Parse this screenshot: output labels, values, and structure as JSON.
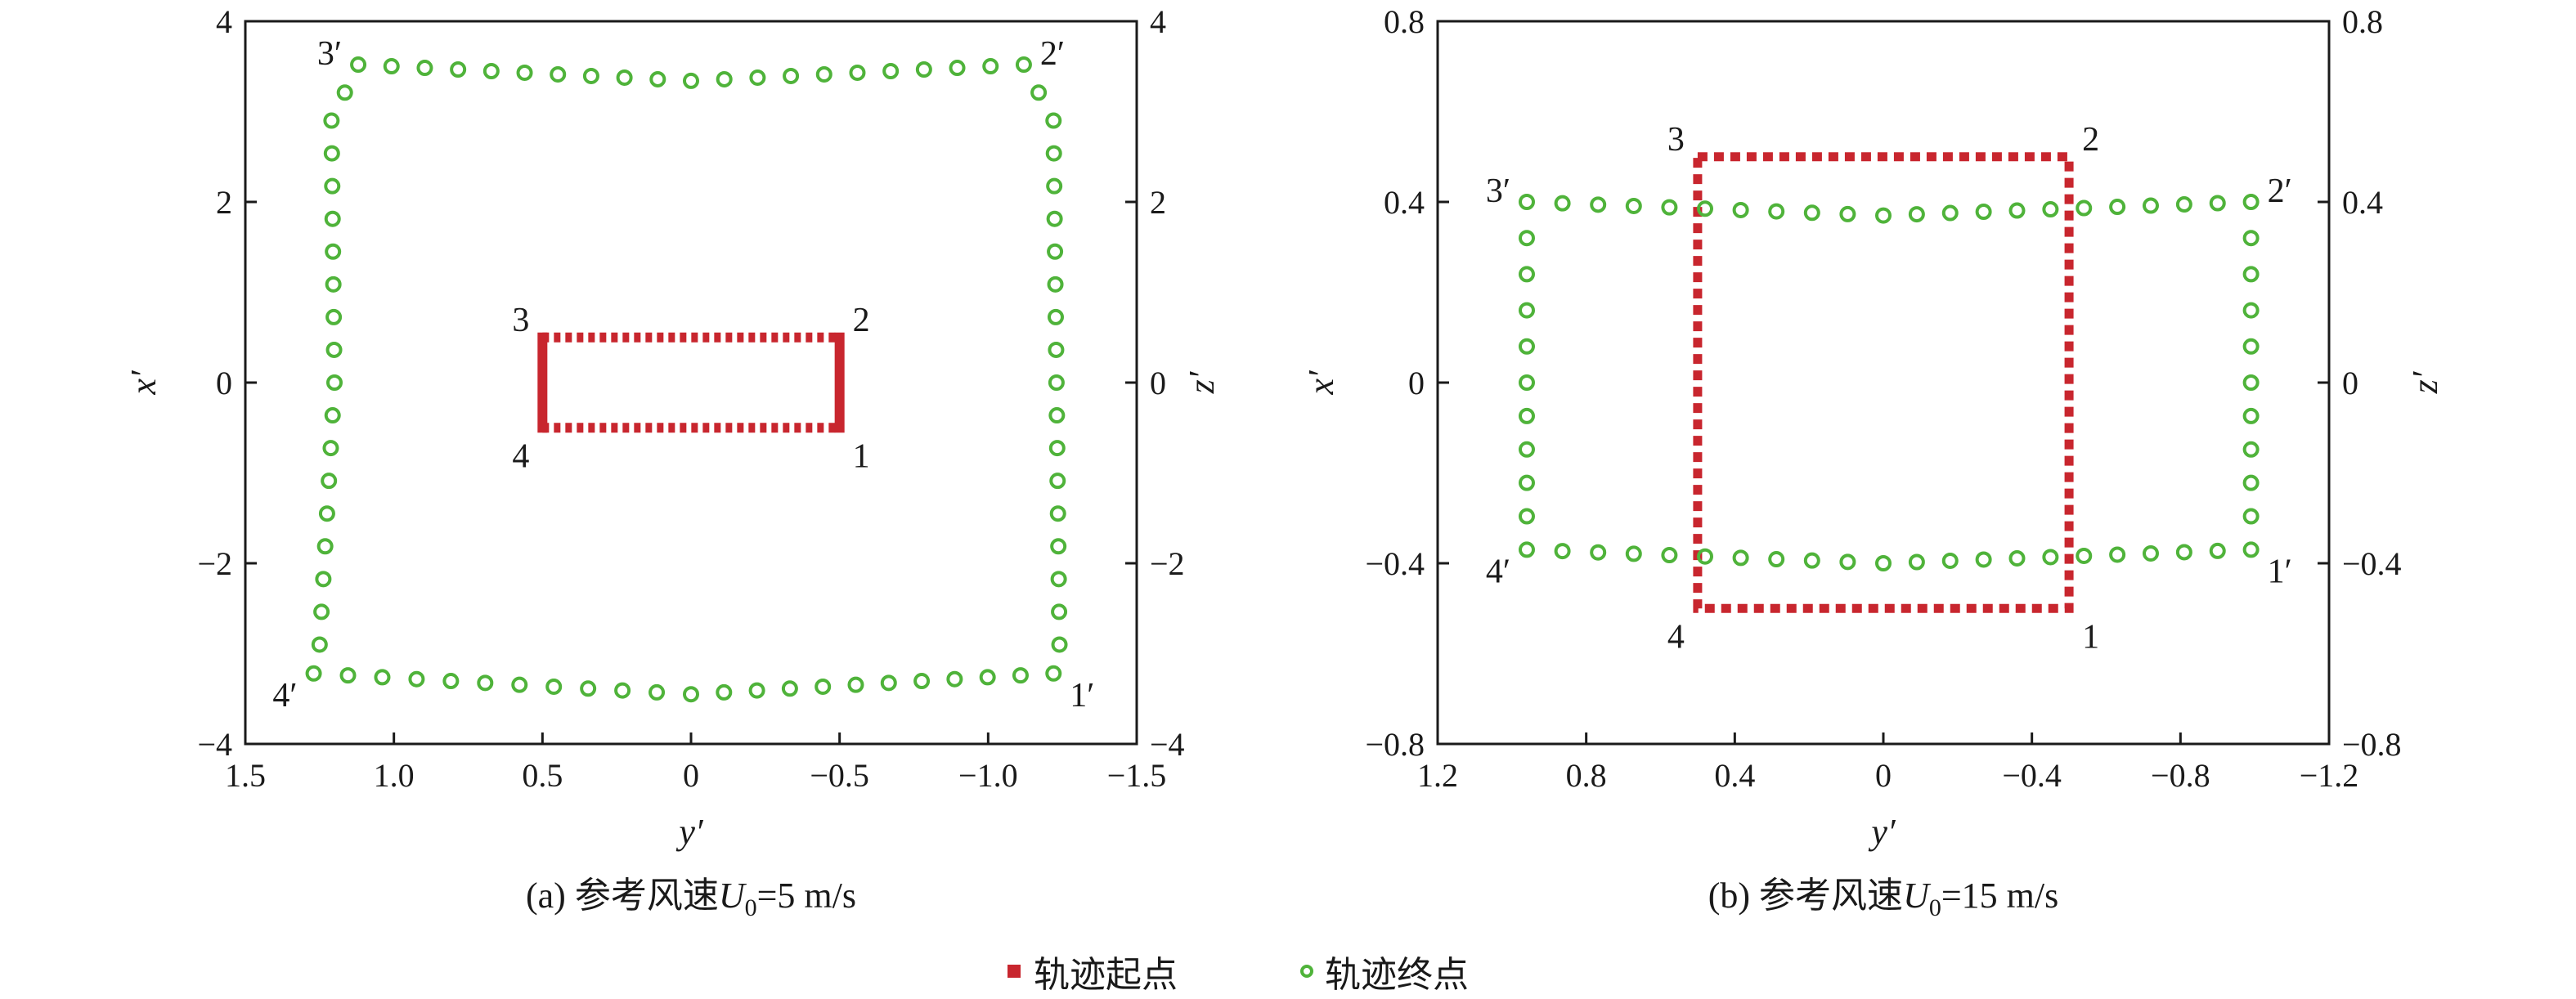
{
  "colors": {
    "start": "#c8262e",
    "end": "#4fb33a",
    "axis": "#1a1a1a"
  },
  "legend": {
    "start_label": "轨迹起点",
    "end_label": "轨迹终点"
  },
  "chart_data": [
    {
      "type": "scatter",
      "caption_prefix": "(a) 参考风速",
      "caption_var": "U",
      "caption_sub": "0",
      "caption_suffix": "=5 m/s",
      "xlabel": "y′",
      "ylabel": "x′",
      "ylabel_right": "z′",
      "xlim": [
        1.5,
        -1.5
      ],
      "ylim": [
        -4,
        4
      ],
      "xticks": [
        1.5,
        1.0,
        0.5,
        0,
        -0.5,
        -1.0,
        -1.5
      ],
      "xtick_labels": [
        "1.5",
        "1.0",
        "0.5",
        "0",
        "−0.5",
        "−1.0",
        "−1.5"
      ],
      "yticks": [
        -4,
        -2,
        0,
        2,
        4
      ],
      "ytick_labels": [
        "−4",
        "−2",
        "0",
        "2",
        "4"
      ],
      "start_rect": {
        "y": [
          0.5,
          -0.5
        ],
        "x": [
          -0.5,
          0.5
        ],
        "style": "thin-dotted, solid vertical sides"
      },
      "start_labels": [
        {
          "text": "1",
          "y": -0.5,
          "x": -0.5,
          "pos": "bottom-right"
        },
        {
          "text": "2",
          "y": -0.5,
          "x": 0.5,
          "pos": "top-right"
        },
        {
          "text": "3",
          "y": 0.5,
          "x": 0.5,
          "pos": "top-left"
        },
        {
          "text": "4",
          "y": 0.5,
          "x": -0.5,
          "pos": "bottom-left"
        }
      ],
      "end_polygon": [
        {
          "y": -1.22,
          "x": -3.22
        },
        {
          "y": -1.24,
          "x": -2.9
        },
        {
          "y": -1.23,
          "x": 0.0
        },
        {
          "y": -1.22,
          "x": 2.9
        },
        {
          "y": -1.12,
          "x": 3.52
        },
        {
          "y": 0.0,
          "x": 3.34
        },
        {
          "y": 1.12,
          "x": 3.52
        },
        {
          "y": 1.21,
          "x": 2.9
        },
        {
          "y": 1.2,
          "x": 0.0
        },
        {
          "y": 1.25,
          "x": -2.9
        },
        {
          "y": 1.27,
          "x": -3.22
        },
        {
          "y": 0.0,
          "x": -3.45
        },
        {
          "y": -1.22,
          "x": -3.22
        }
      ],
      "end_labels": [
        {
          "text": "1′",
          "y": -1.22,
          "x": -3.22,
          "pos": "bottom-right"
        },
        {
          "text": "2′",
          "y": -1.12,
          "x": 3.52,
          "pos": "top-right"
        },
        {
          "text": "3′",
          "y": 1.12,
          "x": 3.52,
          "pos": "top-left"
        },
        {
          "text": "4′",
          "y": 1.27,
          "x": -3.22,
          "pos": "bottom-left"
        }
      ]
    },
    {
      "type": "scatter",
      "caption_prefix": "(b) 参考风速",
      "caption_var": "U",
      "caption_sub": "0",
      "caption_suffix": "=15 m/s",
      "xlabel": "y′",
      "ylabel": "x′",
      "ylabel_right": "z′",
      "xlim": [
        1.2,
        -1.2
      ],
      "ylim": [
        -0.8,
        0.8
      ],
      "xticks": [
        1.2,
        0.8,
        0.4,
        0,
        -0.4,
        -0.8,
        -1.2
      ],
      "xtick_labels": [
        "1.2",
        "0.8",
        "0.4",
        "0",
        "−0.4",
        "−0.8",
        "−1.2"
      ],
      "yticks": [
        -0.8,
        -0.4,
        0,
        0.4,
        0.8
      ],
      "ytick_labels": [
        "−0.8",
        "−0.4",
        "0",
        "0.4",
        "0.8"
      ],
      "start_rect": {
        "y": [
          0.5,
          -0.5
        ],
        "x": [
          -0.5,
          0.5
        ],
        "style": "dotted"
      },
      "start_labels": [
        {
          "text": "1",
          "y": -0.5,
          "x": -0.5,
          "pos": "bottom-right"
        },
        {
          "text": "2",
          "y": -0.5,
          "x": 0.5,
          "pos": "top-right"
        },
        {
          "text": "3",
          "y": 0.5,
          "x": 0.5,
          "pos": "top-left"
        },
        {
          "text": "4",
          "y": 0.5,
          "x": -0.5,
          "pos": "bottom-left"
        }
      ],
      "end_polygon": [
        {
          "y": -0.99,
          "x": -0.37
        },
        {
          "y": -0.99,
          "x": 0.0
        },
        {
          "y": -0.99,
          "x": 0.4
        },
        {
          "y": 0.0,
          "x": 0.37
        },
        {
          "y": 0.96,
          "x": 0.4
        },
        {
          "y": 0.96,
          "x": 0.0
        },
        {
          "y": 0.96,
          "x": -0.37
        },
        {
          "y": 0.0,
          "x": -0.4
        },
        {
          "y": -0.99,
          "x": -0.37
        }
      ],
      "end_labels": [
        {
          "text": "1′",
          "y": -0.99,
          "x": -0.37,
          "pos": "bottom-right"
        },
        {
          "text": "2′",
          "y": -0.99,
          "x": 0.4,
          "pos": "top-right"
        },
        {
          "text": "3′",
          "y": 0.96,
          "x": 0.4,
          "pos": "top-left"
        },
        {
          "text": "4′",
          "y": 0.96,
          "x": -0.37,
          "pos": "bottom-left"
        }
      ]
    }
  ]
}
